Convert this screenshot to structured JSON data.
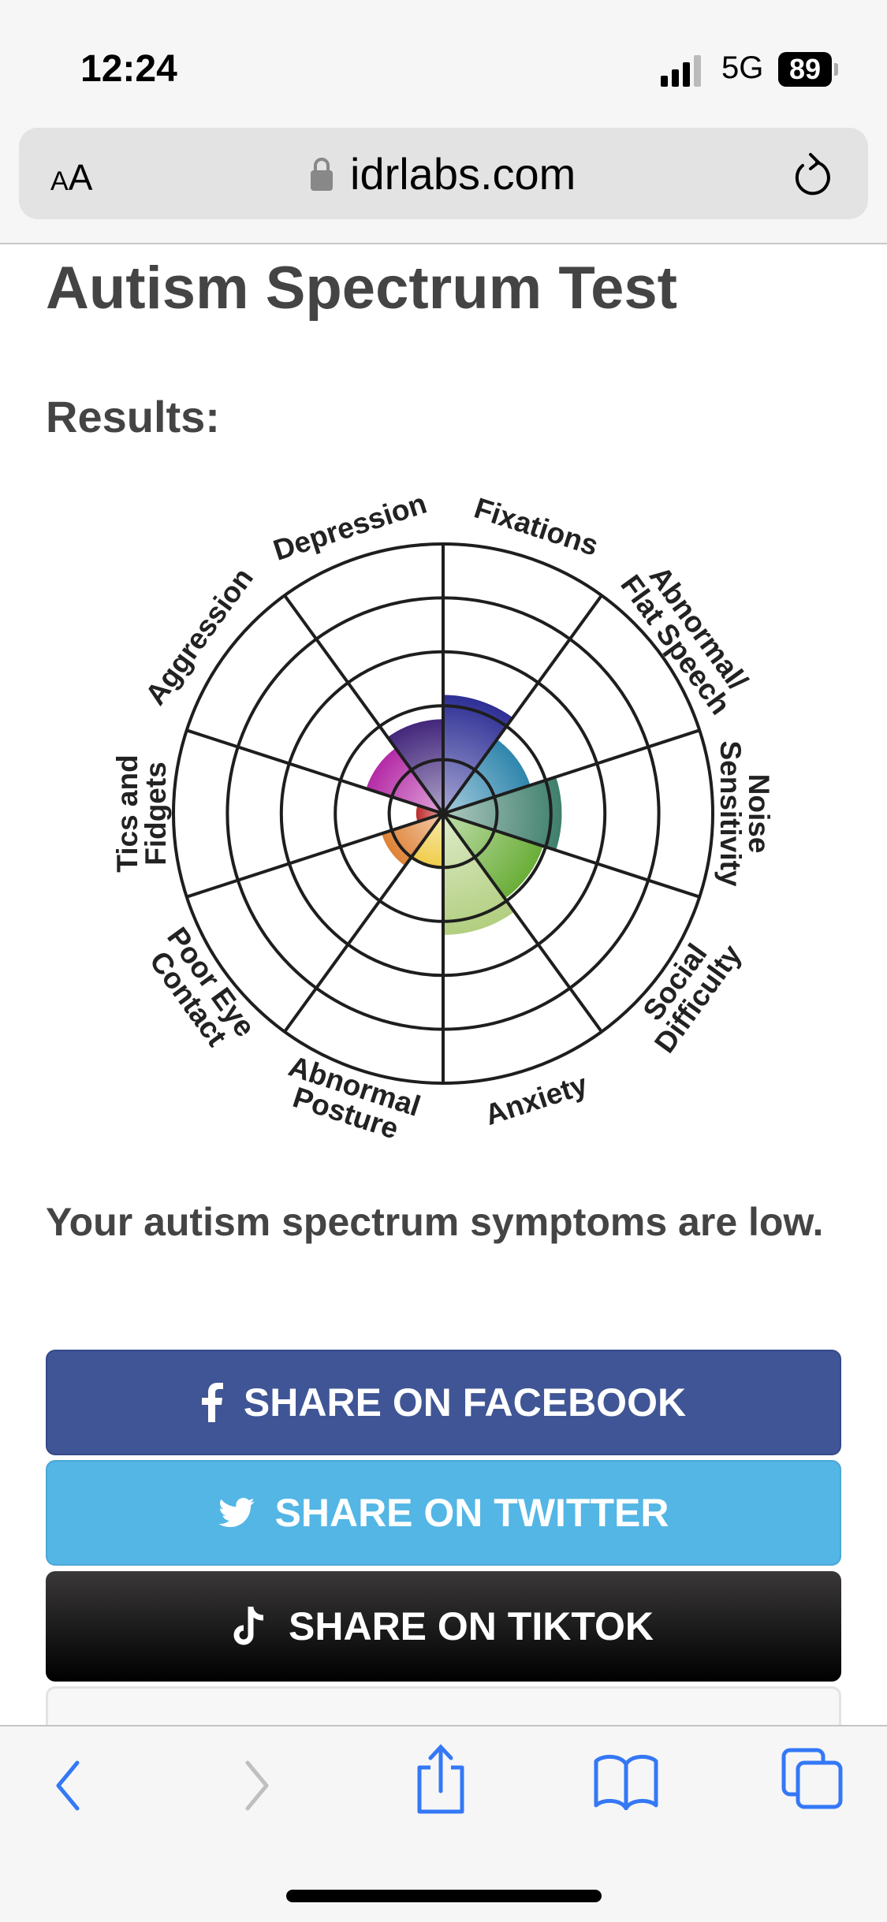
{
  "status_bar": {
    "time": "12:24",
    "network": "5G",
    "battery": "89"
  },
  "browser": {
    "text_size_label_small": "A",
    "text_size_label_large": "A",
    "url": "idrlabs.com",
    "icons": [
      "text-size-icon",
      "lock-icon",
      "reload-icon"
    ]
  },
  "page": {
    "title": "Autism Spectrum Test",
    "results_heading": "Results:",
    "summary": "Your autism spectrum symptoms are low.",
    "buttons": [
      {
        "label": "SHARE ON FACEBOOK",
        "icon": "facebook-icon",
        "color": "#3f5595"
      },
      {
        "label": "SHARE ON TWITTER",
        "icon": "twitter-icon",
        "color": "#53b6e5"
      },
      {
        "label": "SHARE ON TIKTOK",
        "icon": "tiktok-icon",
        "color": "#000000"
      }
    ]
  },
  "chart_data": {
    "type": "polar-area",
    "rmax": 5,
    "rings": 5,
    "grid": true,
    "categories": [
      {
        "label": [
          "Fixations"
        ],
        "value": 2.2,
        "color": "#2e2f95"
      },
      {
        "label": [
          "Abnormal/",
          "Flat Speech"
        ],
        "value": 1.7,
        "color": "#2f86ad"
      },
      {
        "label": [
          "Noise",
          "Sensitivity"
        ],
        "value": 2.2,
        "color": "#3f7f6c"
      },
      {
        "label": [
          "Social",
          "Difficulty"
        ],
        "value": 1.95,
        "color": "#6aae38"
      },
      {
        "label": [
          "Anxiety"
        ],
        "value": 2.25,
        "color": "#b2cf80"
      },
      {
        "label": [
          "Abnormal",
          "Posture"
        ],
        "value": 1.0,
        "color": "#efcd4a"
      },
      {
        "label": [
          "Poor Eye",
          "Contact"
        ],
        "value": 1.2,
        "color": "#df8236"
      },
      {
        "label": [
          "Tics and",
          "Fidgets"
        ],
        "value": 0.5,
        "color": "#bd2b2a"
      },
      {
        "label": [
          "Aggression"
        ],
        "value": 1.5,
        "color": "#b42aa6"
      },
      {
        "label": [
          "Depression"
        ],
        "value": 1.75,
        "color": "#43277c"
      }
    ]
  },
  "toolbar": {
    "icons": [
      "back-icon",
      "forward-icon",
      "share-icon",
      "bookmarks-icon",
      "tabs-icon"
    ],
    "accent": "#3478f6"
  }
}
